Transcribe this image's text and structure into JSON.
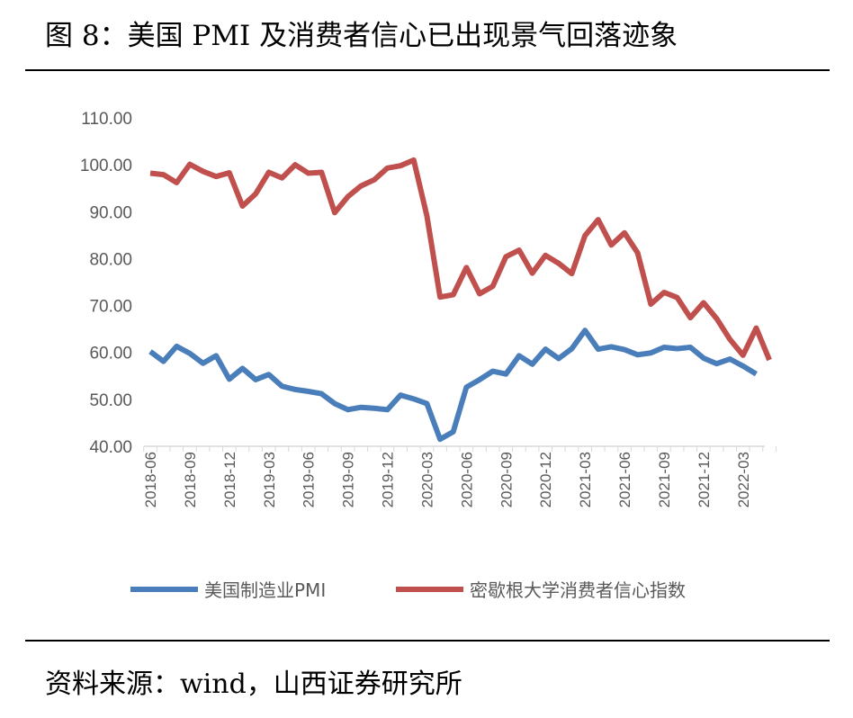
{
  "title": "图 8：美国 PMI 及消费者信心已出现景气回落迹象",
  "source": "资料来源：wind，山西证券研究所",
  "chart_data": {
    "type": "line",
    "title": "图 8：美国 PMI 及消费者信心已出现景气回落迹象",
    "xlabel": "",
    "ylabel": "",
    "ylim": [
      40,
      110
    ],
    "yticks": [
      "40.00",
      "50.00",
      "60.00",
      "70.00",
      "80.00",
      "90.00",
      "100.00",
      "110.00"
    ],
    "xticks": [
      "2018-06",
      "2018-09",
      "2018-12",
      "2019-03",
      "2019-06",
      "2019-09",
      "2019-12",
      "2020-03",
      "2020-06",
      "2020-09",
      "2020-12",
      "2021-03",
      "2021-06",
      "2021-09",
      "2021-12",
      "2022-03"
    ],
    "start_month": "2018-06",
    "legend_position": "bottom",
    "series": [
      {
        "name": "美国制造业PMI",
        "color": "#4a7ebb",
        "values": [
          60.2,
          58.1,
          61.3,
          59.8,
          57.7,
          59.3,
          54.3,
          56.6,
          54.2,
          55.3,
          52.8,
          52.1,
          51.7,
          51.2,
          49.1,
          47.8,
          48.3,
          48.1,
          47.8,
          50.9,
          50.1,
          49.1,
          41.5,
          43.1,
          52.6,
          54.2,
          56.0,
          55.4,
          59.3,
          57.5,
          60.7,
          58.7,
          60.8,
          64.7,
          60.7,
          61.2,
          60.6,
          59.5,
          59.9,
          61.1,
          60.8,
          61.1,
          58.8,
          57.6,
          58.6,
          57.1,
          55.4
        ]
      },
      {
        "name": "密歇根大学消费者信心指数",
        "color": "#c0504d",
        "values": [
          98.2,
          97.9,
          96.2,
          100.1,
          98.6,
          97.5,
          98.3,
          91.2,
          93.8,
          98.4,
          97.2,
          100.0,
          98.2,
          98.4,
          89.8,
          93.2,
          95.5,
          96.8,
          99.3,
          99.8,
          101.0,
          89.1,
          71.8,
          72.3,
          78.1,
          72.5,
          74.1,
          80.4,
          81.8,
          76.9,
          80.7,
          79.0,
          76.8,
          84.9,
          88.3,
          82.9,
          85.5,
          81.2,
          70.3,
          72.8,
          71.7,
          67.4,
          70.6,
          67.2,
          62.8,
          59.4,
          65.2,
          58.4
        ]
      }
    ]
  }
}
